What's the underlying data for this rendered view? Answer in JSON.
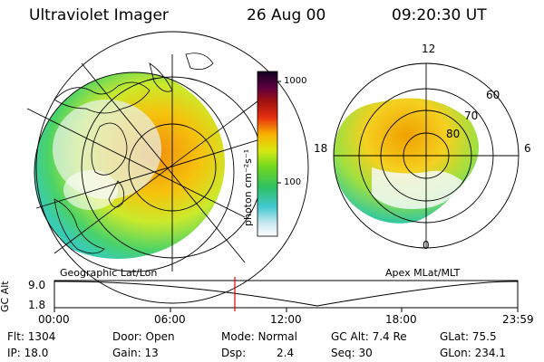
{
  "header": {
    "title": "Ultraviolet Imager",
    "date": "26 Aug 00",
    "time": "09:20:30 UT"
  },
  "left_panel": {
    "label": "Geographic Lat/Lon"
  },
  "right_panel": {
    "label": "Apex MLat/MLT",
    "mlt_labels": [
      "12",
      "18",
      "6",
      "0"
    ],
    "mlat_labels": [
      "60",
      "70",
      "80"
    ]
  },
  "colorbar": {
    "unit_label": "photon cm⁻²s⁻¹",
    "ticks": [
      "1000",
      "100"
    ]
  },
  "altitude_plot": {
    "ylabel": "GC Alt",
    "yticks": [
      "9.0",
      "1.8"
    ],
    "xticks": [
      "00:00",
      "06:00",
      "12:00",
      "18:00",
      "23:59"
    ],
    "marker_time": "09:20:30",
    "marker_color": "#e00000"
  },
  "info": {
    "flt": "Flt: 1304",
    "ip": "IP: 18.0",
    "door": "Door: Open",
    "gain": "Gain: 13",
    "mode": "Mode: Normal",
    "dsp_label": "Dsp:",
    "dsp_value": "2.4",
    "gc_alt": "GC Alt: 7.4 Re",
    "seq": "Seq: 30",
    "glat": "GLat: 75.5",
    "glon": "GLon: 234.1"
  }
}
